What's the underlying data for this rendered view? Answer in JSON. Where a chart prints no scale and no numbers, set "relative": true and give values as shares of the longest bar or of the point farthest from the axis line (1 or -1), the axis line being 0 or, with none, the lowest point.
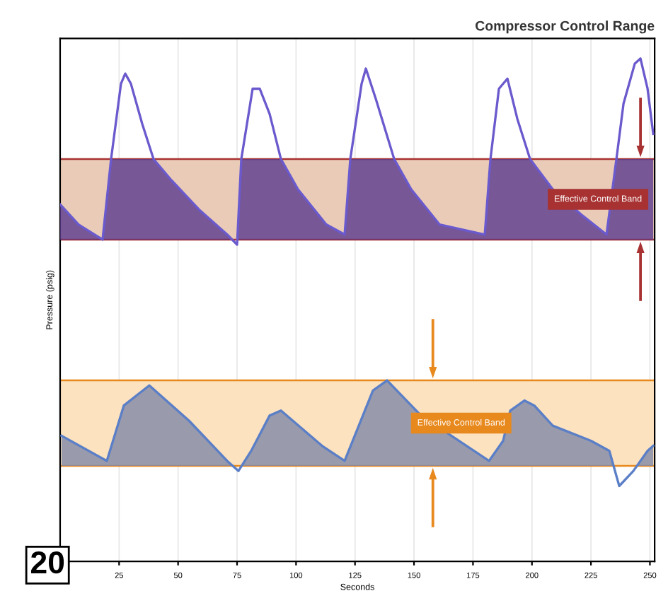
{
  "chart_data": {
    "type": "line",
    "title": "Compressor Control Range",
    "xlabel": "Seconds",
    "ylabel": "Pressure (psig)",
    "relative": true,
    "xlim": [
      0,
      252
    ],
    "xticks": [
      25,
      50,
      75,
      100,
      125,
      150,
      175,
      200,
      225,
      250
    ],
    "tick_labels": "x",
    "grid": "x",
    "series": [
      {
        "color": "#6a5acd",
        "x": [
          0,
          7.8,
          18,
          21.6,
          25.8,
          27.6,
          30,
          34.8,
          39.6,
          46.8,
          58.8,
          70.8,
          75,
          76.8,
          81.6,
          84.6,
          88.8,
          93.6,
          100.8,
          112.8,
          120.6,
          123,
          127.8,
          129.6,
          133.8,
          141.6,
          148.8,
          160.8,
          180,
          182.4,
          186,
          189.6,
          193.8,
          199.2,
          208.8,
          220.8,
          231.6,
          235.8,
          238.8,
          243.6,
          246,
          249,
          251.4
        ],
        "values": [
          0.71,
          0.67,
          0.64,
          0.8,
          0.95,
          0.97,
          0.95,
          0.87,
          0.8,
          0.76,
          0.7,
          0.65,
          0.63,
          0.8,
          0.94,
          0.94,
          0.89,
          0.8,
          0.74,
          0.67,
          0.65,
          0.8,
          0.95,
          0.98,
          0.92,
          0.8,
          0.74,
          0.67,
          0.65,
          0.8,
          0.94,
          0.96,
          0.88,
          0.8,
          0.74,
          0.69,
          0.65,
          0.8,
          0.91,
          0.99,
          1.0,
          0.94,
          0.85
        ]
      },
      {
        "color": "#5b7fc7",
        "x": [
          0.6,
          19.8,
          27,
          37.8,
          54.6,
          70.8,
          75.6,
          81,
          88.8,
          93.6,
          111,
          120.6,
          126.6,
          132.6,
          138.6,
          153,
          181.8,
          187.8,
          190.8,
          196.8,
          201,
          208.8,
          225,
          232.8,
          237,
          243,
          249,
          251.4
        ],
        "values": [
          0.25,
          0.2,
          0.31,
          0.35,
          0.28,
          0.2,
          0.18,
          0.22,
          0.29,
          0.3,
          0.23,
          0.2,
          0.27,
          0.34,
          0.36,
          0.29,
          0.2,
          0.24,
          0.3,
          0.32,
          0.31,
          0.27,
          0.24,
          0.22,
          0.15,
          0.18,
          0.22,
          0.23
        ]
      }
    ],
    "bands": [
      {
        "axis": "y",
        "from": 0.64,
        "to": 0.8,
        "label": "Effective Control Band",
        "color": "#e9cbb8"
      },
      {
        "axis": "y",
        "from": 0.19,
        "to": 0.36,
        "label": "Effective Control Band",
        "color": "#fde2bf"
      }
    ],
    "ref_lines": [
      {
        "axis": "y",
        "value": 0.64,
        "color": "#a83232"
      },
      {
        "axis": "y",
        "value": 0.8,
        "color": "#a83232"
      },
      {
        "axis": "y",
        "value": 0.19,
        "color": "#e8891e"
      },
      {
        "axis": "y",
        "value": 0.36,
        "color": "#e8891e"
      }
    ],
    "annotations": [
      "20"
    ]
  }
}
